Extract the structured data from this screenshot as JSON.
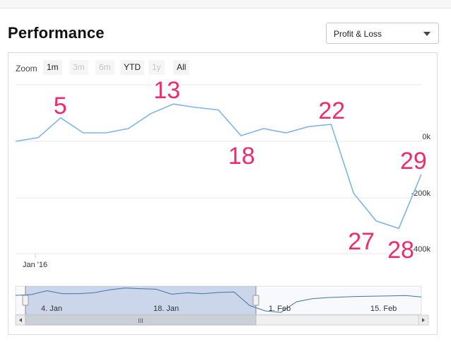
{
  "header": {
    "title": "Performance",
    "select": {
      "value": "Profit & Loss"
    }
  },
  "zoom": {
    "label": "Zoom",
    "buttons": [
      {
        "label": "1m",
        "enabled": true
      },
      {
        "label": "3m",
        "enabled": false
      },
      {
        "label": "6m",
        "enabled": false
      },
      {
        "label": "YTD",
        "enabled": true
      },
      {
        "label": "1y",
        "enabled": false
      },
      {
        "label": "All",
        "enabled": true
      }
    ]
  },
  "chart_data": {
    "type": "line",
    "x_tick_labels": [
      "Jan '16"
    ],
    "y_tick_labels": [
      "0k",
      "-200k",
      "-400k"
    ],
    "series": [
      {
        "values": [
          0,
          13,
          83,
          30,
          30,
          45,
          98,
          132,
          120,
          111,
          20,
          45,
          30,
          52,
          60,
          -184,
          -282,
          -308,
          -117
        ]
      }
    ],
    "annotations": [
      {
        "text": "5",
        "point_index": 2
      },
      {
        "text": "13",
        "point_index": 7
      },
      {
        "text": "18",
        "point_index": 10
      },
      {
        "text": "22",
        "point_index": 14
      },
      {
        "text": "27",
        "point_index": 16
      },
      {
        "text": "28",
        "point_index": 17
      },
      {
        "text": "29",
        "point_index": 18
      }
    ],
    "navigator": {
      "labels": [
        "4. Jan",
        "18. Jan",
        "1. Feb",
        "15. Feb"
      ]
    },
    "colors": {
      "series": "#7cb5ec",
      "annotation": "#ee2c6b",
      "navigator_mask": "#6685c2"
    },
    "grid": true
  },
  "scrollbar": {
    "thumb_glyph": "III"
  }
}
